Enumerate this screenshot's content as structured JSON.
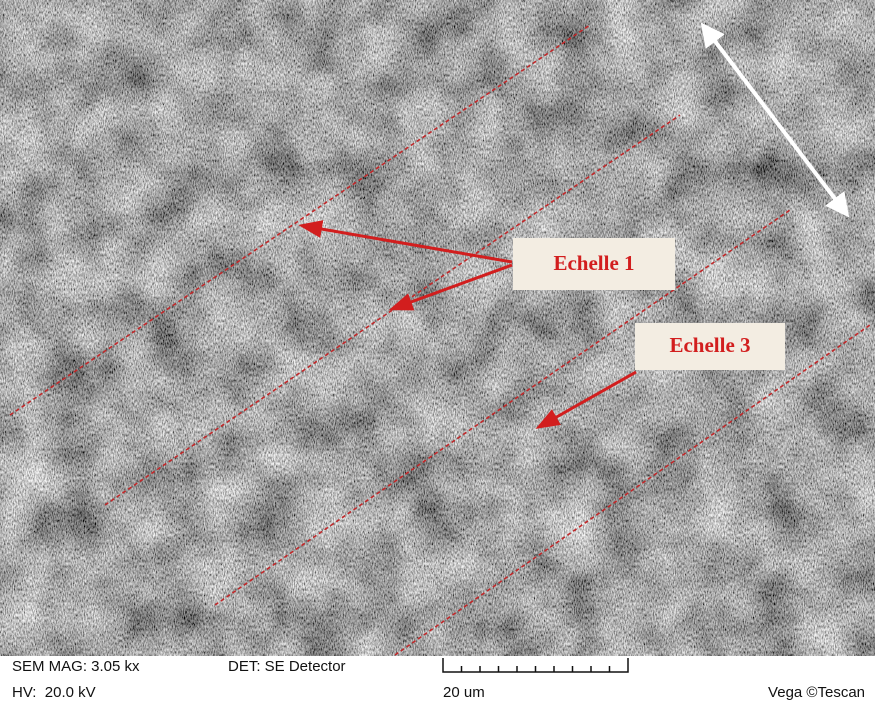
{
  "annotations": {
    "label_1": "Echelle 1",
    "label_3": "Echelle 3"
  },
  "info_bar": {
    "mag": "SEM MAG: 3.05 kx",
    "detector": "DET: SE Detector",
    "hv": "HV:  20.0 kV",
    "scale": "20 um",
    "brand": "Vega ©Tescan"
  }
}
